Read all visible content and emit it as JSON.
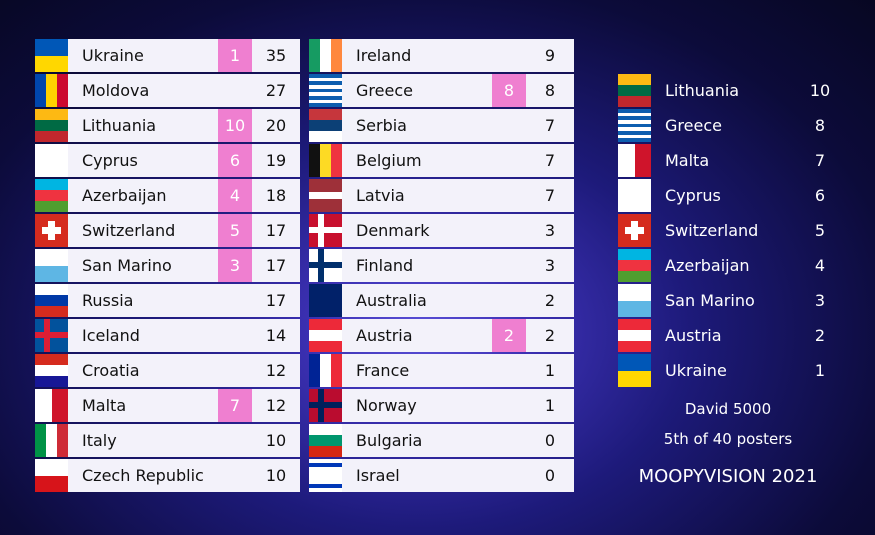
{
  "scoreboard": {
    "left": [
      {
        "country": "Ukraine",
        "given": 1,
        "total": 35
      },
      {
        "country": "Moldova",
        "total": 27
      },
      {
        "country": "Lithuania",
        "given": 10,
        "total": 20
      },
      {
        "country": "Cyprus",
        "given": 6,
        "total": 19
      },
      {
        "country": "Azerbaijan",
        "given": 4,
        "total": 18
      },
      {
        "country": "Switzerland",
        "given": 5,
        "total": 17
      },
      {
        "country": "San Marino",
        "given": 3,
        "total": 17
      },
      {
        "country": "Russia",
        "total": 17
      },
      {
        "country": "Iceland",
        "total": 14
      },
      {
        "country": "Croatia",
        "total": 12
      },
      {
        "country": "Malta",
        "given": 7,
        "total": 12
      },
      {
        "country": "Italy",
        "total": 10
      },
      {
        "country": "Czech Republic",
        "total": 10
      }
    ],
    "middle": [
      {
        "country": "Ireland",
        "total": 9
      },
      {
        "country": "Greece",
        "given": 8,
        "total": 8
      },
      {
        "country": "Serbia",
        "total": 7
      },
      {
        "country": "Belgium",
        "total": 7
      },
      {
        "country": "Latvia",
        "total": 7
      },
      {
        "country": "Denmark",
        "total": 3
      },
      {
        "country": "Finland",
        "total": 3
      },
      {
        "country": "Australia",
        "total": 2
      },
      {
        "country": "Austria",
        "given": 2,
        "total": 2
      },
      {
        "country": "France",
        "total": 1
      },
      {
        "country": "Norway",
        "total": 1
      },
      {
        "country": "Bulgaria",
        "total": 0
      },
      {
        "country": "Israel",
        "total": 0
      }
    ]
  },
  "voter": {
    "votes": [
      {
        "country": "Lithuania",
        "points": 10
      },
      {
        "country": "Greece",
        "points": 8
      },
      {
        "country": "Malta",
        "points": 7
      },
      {
        "country": "Cyprus",
        "points": 6
      },
      {
        "country": "Switzerland",
        "points": 5
      },
      {
        "country": "Azerbaijan",
        "points": 4
      },
      {
        "country": "San Marino",
        "points": 3
      },
      {
        "country": "Austria",
        "points": 2
      },
      {
        "country": "Ukraine",
        "points": 1
      }
    ],
    "name": "David 5000",
    "rank": "5th of 40 posters",
    "show": "MOOPYVISION 2021"
  }
}
